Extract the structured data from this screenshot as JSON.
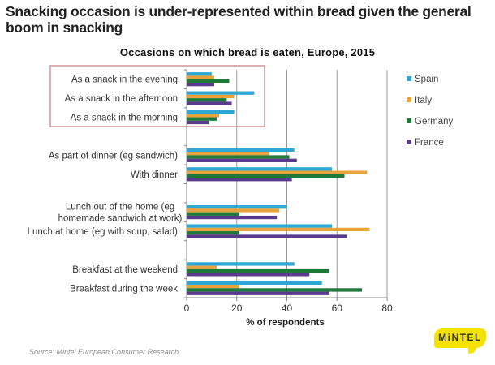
{
  "headline": "Snacking occasion is under-represented within bread given the general boom in snacking",
  "source": "Source: Mintel European Consumer Research",
  "logo": "MiNTEL",
  "chart_data": {
    "type": "bar",
    "orientation": "horizontal",
    "title": "Occasions  on which bread is eaten, Europe, 2015",
    "xlabel": "% of respondents",
    "ylabel": "",
    "xlim": [
      0,
      80
    ],
    "xticks": [
      0,
      20,
      40,
      60,
      80
    ],
    "grid": "vertical",
    "legend": "right",
    "highlight_box": [
      "As a snack in the evening",
      "As a snack in the afternoon",
      "As a snack in the morning"
    ],
    "categories": [
      "As a snack in the evening",
      "As a snack in the afternoon",
      "As a snack in the morning",
      "",
      "As part of dinner (eg sandwich)",
      "With dinner",
      "",
      "Lunch out of the home (eg homemade sandwich at work)",
      "Lunch at home (eg with soup, salad)",
      "",
      "Breakfast at the weekend",
      "Breakfast during the week"
    ],
    "category_label_lines": [
      [
        "As a snack in the evening"
      ],
      [
        "As a snack in the afternoon"
      ],
      [
        "As a snack in the morning"
      ],
      [],
      [
        "As part of dinner (eg sandwich)"
      ],
      [
        "With dinner"
      ],
      [],
      [
        "Lunch out of the home (eg",
        "homemade sandwich at work)"
      ],
      [
        "Lunch at home (eg with soup, salad)"
      ],
      [],
      [
        "Breakfast at the weekend"
      ],
      [
        "Breakfast during the week"
      ]
    ],
    "series": [
      {
        "name": "Spain",
        "color": "#2ea7d6",
        "values": [
          10,
          27,
          19,
          null,
          43,
          58,
          null,
          40,
          58,
          null,
          43,
          54
        ]
      },
      {
        "name": "Italy",
        "color": "#e8a33d",
        "values": [
          11,
          19,
          13,
          null,
          33,
          72,
          null,
          37,
          73,
          null,
          12,
          21
        ]
      },
      {
        "name": "Germany",
        "color": "#1f7a3a",
        "values": [
          17,
          16,
          12,
          null,
          41,
          63,
          null,
          21,
          21,
          null,
          57,
          70
        ]
      },
      {
        "name": "France",
        "color": "#5a3a8c",
        "values": [
          11,
          18,
          9,
          null,
          44,
          42,
          null,
          36,
          64,
          null,
          49,
          57
        ]
      }
    ]
  }
}
